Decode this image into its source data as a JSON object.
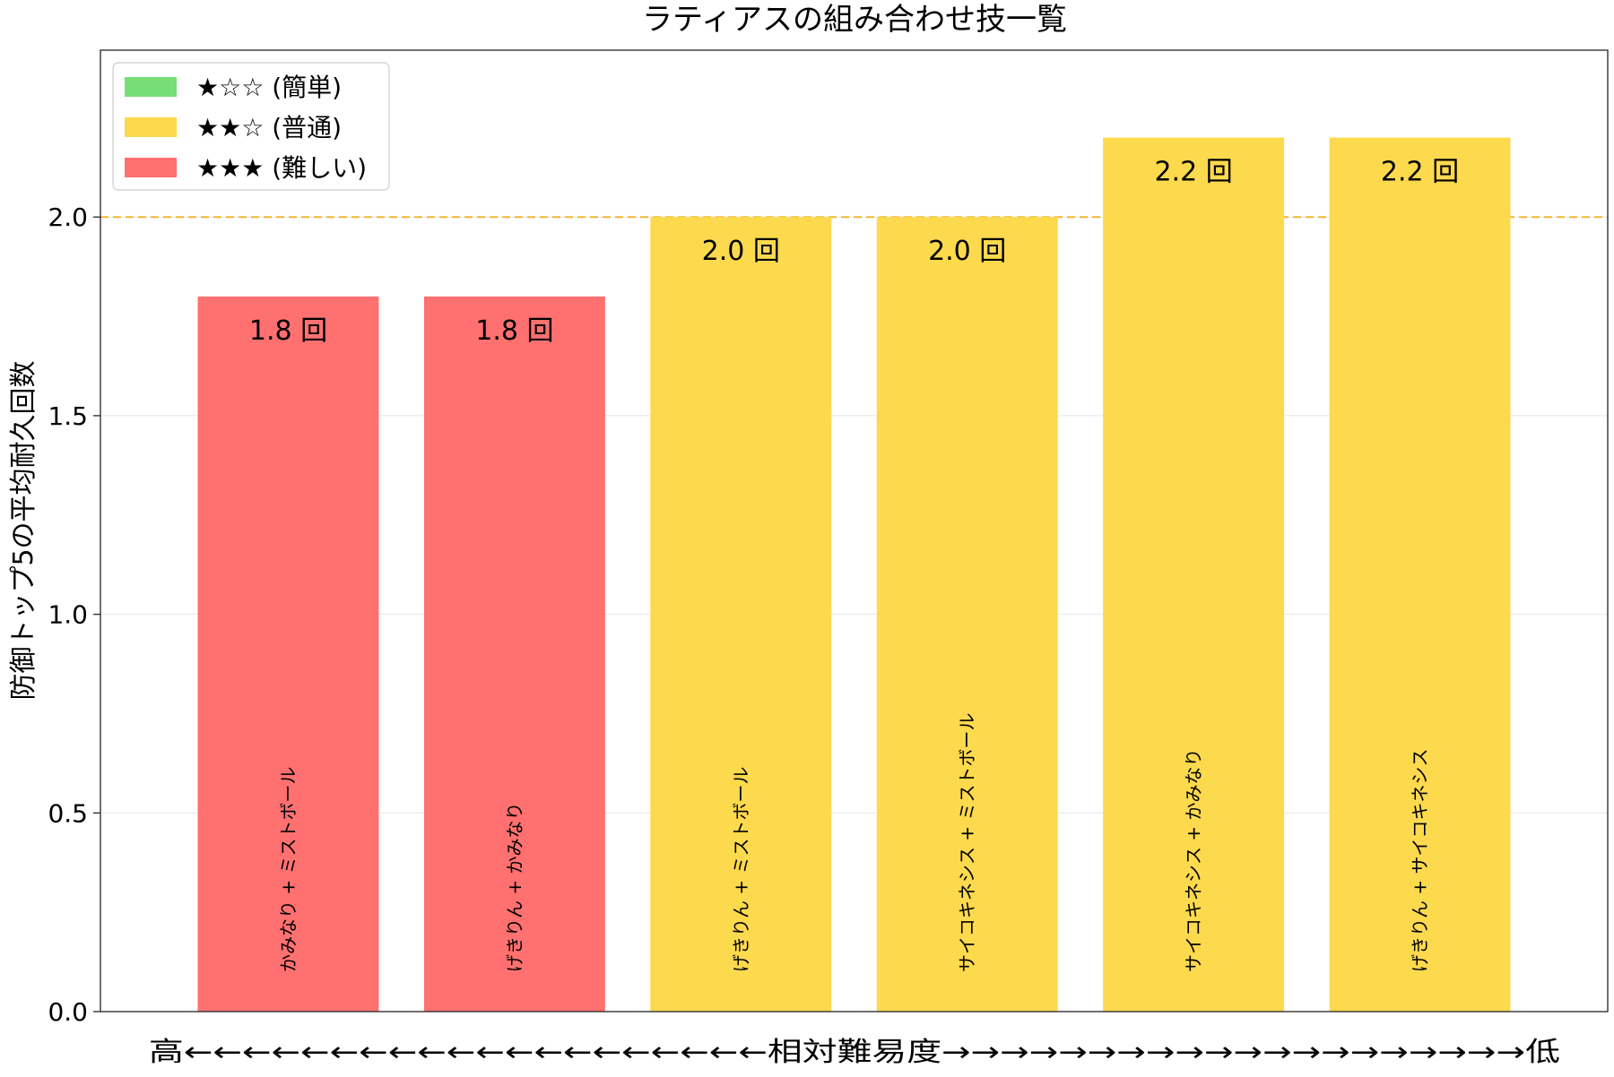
{
  "chart_data": {
    "type": "bar",
    "title": "ラティアスの組み合わせ技一覧",
    "ylabel": "防御トップ5の平均耐久回数",
    "xlabel": "高←←←←←←←←←←←←←←←←←←←←相対難易度→→→→→→→→→→→→→→→→→→→→低",
    "ylim": [
      0,
      2.42
    ],
    "yticks": [
      "0.0",
      "0.5",
      "1.0",
      "1.5",
      "2.0"
    ],
    "categories": [
      "かみなり + ミストボール",
      "げきりん + かみなり",
      "げきりん + ミストボール",
      "サイコキネシス + ミストボール",
      "サイコキネシス + かみなり",
      "げきりん + サイコキネシス"
    ],
    "values": [
      1.8,
      1.8,
      2.0,
      2.0,
      2.2,
      2.2
    ],
    "value_labels": [
      "1.8 回",
      "1.8 回",
      "2.0 回",
      "2.0 回",
      "2.2 回",
      "2.2 回"
    ],
    "difficulty": [
      3,
      3,
      2,
      2,
      2,
      2
    ],
    "reference_line": 2.0,
    "grid": "horizontal",
    "legend_position": "top-left",
    "legend": [
      {
        "label": "★☆☆ (簡単)",
        "color": "#77dd77"
      },
      {
        "label": "★★☆ (普通)",
        "color": "#fdd94e"
      },
      {
        "label": "★★★ (難しい)",
        "color": "#ff7070"
      }
    ],
    "colors": {
      "hard": "#ff7070",
      "normal": "#fdd94e",
      "easy": "#77dd77",
      "reference_line": "#f2b731"
    }
  }
}
